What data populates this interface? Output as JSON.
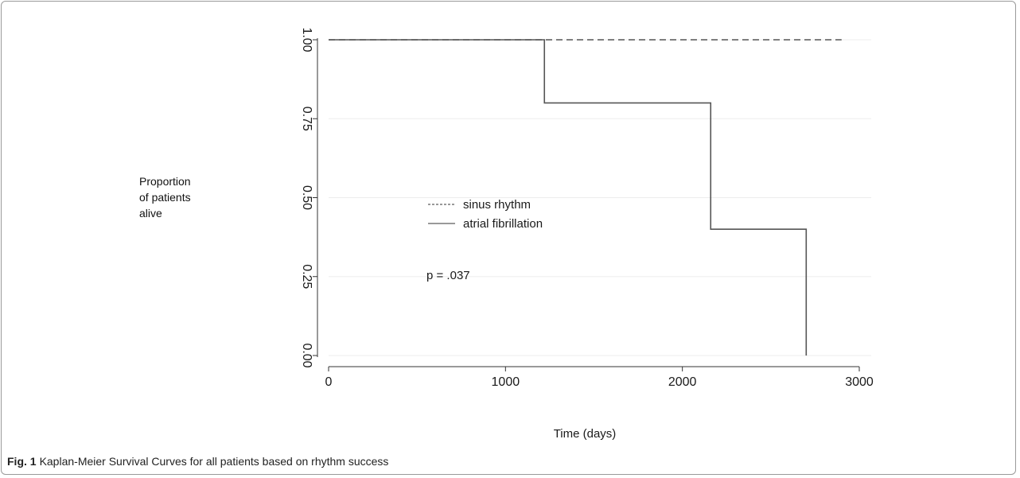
{
  "figure": {
    "label": "Fig. 1",
    "caption": "Kaplan-Meier Survival Curves for all patients based on rhythm success"
  },
  "chart_data": {
    "type": "line",
    "step": true,
    "xlabel": "Time (days)",
    "ylabel_lines": [
      "Proportion",
      "of patients",
      "alive"
    ],
    "xlim": [
      0,
      3000
    ],
    "ylim": [
      0,
      1
    ],
    "xticks": [
      0,
      1000,
      2000,
      3000
    ],
    "xtick_labels": [
      "0",
      "1000",
      "2000",
      "3000"
    ],
    "yticks": [
      0,
      0.25,
      0.5,
      0.75,
      1.0
    ],
    "ytick_labels": [
      "0.00",
      "0.25",
      "0.50",
      "0.75",
      "1.00"
    ],
    "grid": "horizontal",
    "legend_position": "center-left",
    "series": [
      {
        "name": "sinus rhythm",
        "line_style": "dashed",
        "color": "#555555",
        "x": [
          0,
          2900
        ],
        "y": [
          1.0,
          1.0
        ]
      },
      {
        "name": "atrial fibrillation",
        "line_style": "solid",
        "color": "#555555",
        "x": [
          0,
          1220,
          2160,
          2700,
          2700
        ],
        "y": [
          1.0,
          0.8,
          0.4,
          0.0,
          0.0
        ]
      }
    ],
    "annotations": [
      {
        "text": "p = .037"
      }
    ]
  }
}
